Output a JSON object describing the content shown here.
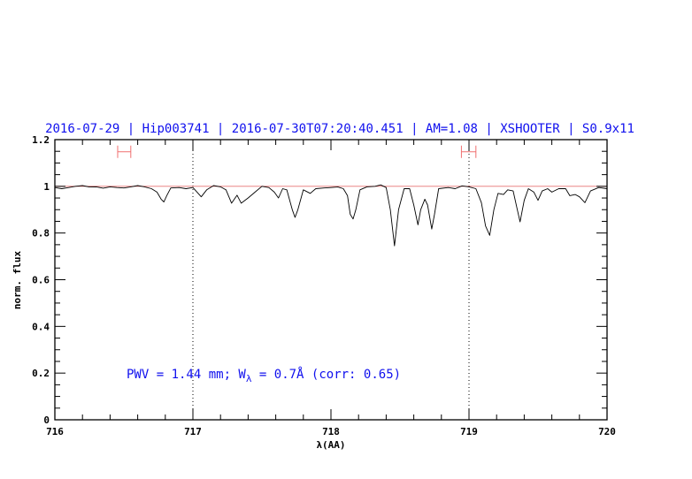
{
  "chart_data": {
    "type": "line",
    "title": "2016-07-29 | Hip003741 | 2016-07-30T07:20:40.451 | AM=1.08 | XSHOOTER | S0.9x11",
    "xlabel": "λ(AA)",
    "ylabel": "norm. flux",
    "xlim": [
      716,
      720
    ],
    "ylim": [
      0,
      1.2
    ],
    "xticks": [
      "716",
      "717",
      "718",
      "719",
      "720"
    ],
    "yticks": [
      "0",
      "0.2",
      "0.4",
      "0.6",
      "0.8",
      "1",
      "1.2"
    ],
    "grid": false,
    "annotation": {
      "pre": "PWV  =  1.44  mm;  W",
      "sub": "λ",
      "post": "  =  0.7Å  (corr:  0.65)",
      "x": 716.52,
      "y": 0.19
    },
    "reference_line": {
      "y": 1.0,
      "color": "#e05050"
    },
    "vertical_markers": [
      717.0,
      719.0
    ],
    "ranges": [
      {
        "x": [
          716.455,
          716.55
        ],
        "y": 1.148,
        "color": "#f07070"
      },
      {
        "x": [
          718.945,
          719.05
        ],
        "y": 1.148,
        "color": "#f07070"
      }
    ],
    "colors": {
      "title": "#1010ee",
      "spectrum": "#000000"
    },
    "series": [
      {
        "x": [
          716.0,
          716.05,
          716.1,
          716.15,
          716.2,
          716.25,
          716.3,
          716.35,
          716.4,
          716.45,
          716.5,
          716.55,
          716.6,
          716.65,
          716.7,
          716.74,
          716.77,
          716.79,
          716.81,
          716.84,
          716.9,
          716.95,
          717.0,
          717.03,
          717.06,
          717.1,
          717.15,
          717.2,
          717.24,
          717.28,
          717.32,
          717.35,
          717.4,
          717.45,
          717.5,
          717.55,
          717.59,
          717.62,
          717.65,
          717.68,
          717.72,
          717.74,
          717.76,
          717.8,
          717.85,
          717.89,
          717.95,
          718.0,
          718.05,
          718.09,
          718.12,
          718.14,
          718.16,
          718.18,
          718.21,
          718.26,
          718.32,
          718.36,
          718.4,
          718.43,
          718.46,
          718.49,
          718.53,
          718.57,
          718.6,
          718.63,
          718.65,
          718.68,
          718.7,
          718.73,
          718.75,
          718.78,
          718.85,
          718.9,
          718.95,
          719.0,
          719.05,
          719.09,
          719.12,
          719.15,
          719.18,
          719.21,
          719.25,
          719.28,
          719.32,
          719.35,
          719.37,
          719.4,
          719.43,
          719.47,
          719.5,
          719.53,
          719.57,
          719.6,
          719.65,
          719.7,
          719.73,
          719.77,
          719.8,
          719.84,
          719.88,
          719.94,
          720.0
        ],
        "y": [
          0.995,
          0.99,
          0.995,
          1.0,
          1.003,
          0.997,
          0.998,
          0.992,
          0.998,
          0.995,
          0.993,
          0.998,
          1.003,
          0.998,
          0.99,
          0.975,
          0.945,
          0.933,
          0.96,
          0.993,
          0.995,
          0.99,
          0.995,
          0.975,
          0.955,
          0.985,
          1.003,
          0.998,
          0.985,
          0.928,
          0.962,
          0.928,
          0.95,
          0.975,
          1.0,
          0.995,
          0.975,
          0.95,
          0.99,
          0.985,
          0.9,
          0.867,
          0.9,
          0.985,
          0.97,
          0.99,
          0.993,
          0.995,
          0.997,
          0.99,
          0.96,
          0.88,
          0.86,
          0.9,
          0.985,
          0.998,
          1.0,
          1.006,
          0.995,
          0.9,
          0.745,
          0.9,
          0.99,
          0.99,
          0.92,
          0.835,
          0.9,
          0.945,
          0.92,
          0.817,
          0.88,
          0.99,
          0.995,
          0.99,
          1.002,
          0.998,
          0.99,
          0.93,
          0.83,
          0.79,
          0.9,
          0.97,
          0.965,
          0.985,
          0.98,
          0.9,
          0.848,
          0.94,
          0.99,
          0.975,
          0.94,
          0.98,
          0.99,
          0.975,
          0.99,
          0.99,
          0.96,
          0.965,
          0.955,
          0.93,
          0.98,
          0.995,
          0.99
        ]
      }
    ]
  }
}
